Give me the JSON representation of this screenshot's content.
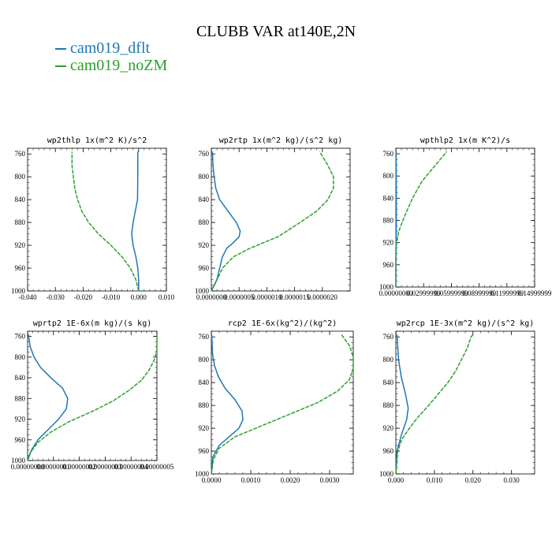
{
  "figure": {
    "title": "CLUBB VAR at140E,2N",
    "legend": [
      {
        "label": "cam019_dflt",
        "color": "#1f77b4"
      },
      {
        "label": "cam019_noZM",
        "color": "#2ca02c"
      }
    ]
  },
  "chart_data": [
    {
      "type": "line",
      "title": "wp2thlp  1x(m^2 K)/s^2",
      "xlim": [
        -0.04,
        0.01
      ],
      "ylim": [
        1000,
        750
      ],
      "xticks": [
        "-0.040",
        "-0.030",
        "-0.020",
        "-0.010",
        "0.000",
        "0.010"
      ],
      "yticks": [
        "760",
        "800",
        "840",
        "880",
        "920",
        "960",
        "1000"
      ],
      "series": [
        {
          "name": "cam019_dflt",
          "points": [
            [
              0.0,
              1000
            ],
            [
              0.0,
              980
            ],
            [
              -0.0003,
              960
            ],
            [
              -0.001,
              940
            ],
            [
              -0.002,
              920
            ],
            [
              -0.0025,
              900
            ],
            [
              -0.002,
              880
            ],
            [
              -0.0012,
              860
            ],
            [
              -0.0004,
              840
            ],
            [
              -0.0003,
              800
            ],
            [
              -0.0003,
              756
            ]
          ]
        },
        {
          "name": "cam019_noZM",
          "points": [
            [
              0.0,
              1000
            ],
            [
              -0.001,
              980
            ],
            [
              -0.003,
              960
            ],
            [
              -0.006,
              940
            ],
            [
              -0.01,
              920
            ],
            [
              -0.0145,
              900
            ],
            [
              -0.018,
              880
            ],
            [
              -0.0205,
              860
            ],
            [
              -0.022,
              840
            ],
            [
              -0.023,
              820
            ],
            [
              -0.0235,
              800
            ],
            [
              -0.024,
              780
            ],
            [
              -0.024,
              756
            ]
          ]
        }
      ]
    },
    {
      "type": "line",
      "title": "wp2rtp  1x(m^2 kg)/(s^2 kg)",
      "xlim": [
        0.0,
        2.5e-06
      ],
      "ylim": [
        1000,
        750
      ],
      "xticks": [
        "0.0000000",
        "0.0000005",
        "0.0000010",
        "0.0000015",
        "0.0000020"
      ],
      "yticks": [
        "760",
        "800",
        "840",
        "880",
        "920",
        "960",
        "1000"
      ],
      "series": [
        {
          "name": "cam019_dflt",
          "points": [
            [
              0.0,
              1000
            ],
            [
              5e-08,
              990
            ],
            [
              1e-07,
              980
            ],
            [
              1.5e-07,
              960
            ],
            [
              2e-07,
              940
            ],
            [
              2.8e-07,
              925
            ],
            [
              4e-07,
              915
            ],
            [
              5e-07,
              905
            ],
            [
              5.2e-07,
              895
            ],
            [
              4.5e-07,
              880
            ],
            [
              3e-07,
              860
            ],
            [
              1.5e-07,
              840
            ],
            [
              8e-08,
              820
            ],
            [
              5e-08,
              800
            ],
            [
              3e-08,
              780
            ],
            [
              2e-08,
              756
            ]
          ]
        },
        {
          "name": "cam019_noZM",
          "points": [
            [
              0.0,
              1000
            ],
            [
              8e-08,
              985
            ],
            [
              2e-07,
              960
            ],
            [
              4e-07,
              940
            ],
            [
              7e-07,
              925
            ],
            [
              1.2e-06,
              905
            ],
            [
              1.6e-06,
              880
            ],
            [
              1.9e-06,
              860
            ],
            [
              2.1e-06,
              840
            ],
            [
              2.2e-06,
              820
            ],
            [
              2.2e-06,
              800
            ],
            [
              2.1e-06,
              780
            ],
            [
              1.95e-06,
              756
            ]
          ]
        }
      ]
    },
    {
      "type": "line",
      "title": "wpthlp2  1x(m K^2)/s",
      "xlim": [
        0.0,
        0.15
      ],
      "ylim": [
        1000,
        750
      ],
      "xticks": [
        "0.00000000",
        "0.02999999",
        "0.05999999",
        "0.08999999",
        "0.11999999",
        "0.14999999"
      ],
      "yticks": [
        "760",
        "800",
        "840",
        "880",
        "920",
        "960",
        "1000"
      ],
      "series": [
        {
          "name": "cam019_dflt",
          "points": [
            [
              0.0,
              1000
            ],
            [
              0.0,
              960
            ],
            [
              0.0003,
              920
            ],
            [
              0.0005,
              880
            ],
            [
              0.0005,
              840
            ],
            [
              0.0004,
              800
            ],
            [
              0.0003,
              756
            ]
          ]
        },
        {
          "name": "cam019_noZM",
          "points": [
            [
              0.0,
              1000
            ],
            [
              0.0,
              960
            ],
            [
              0.0,
              930
            ],
            [
              0.003,
              900
            ],
            [
              0.01,
              870
            ],
            [
              0.018,
              840
            ],
            [
              0.028,
              810
            ],
            [
              0.038,
              790
            ],
            [
              0.048,
              770
            ],
            [
              0.055,
              756
            ]
          ]
        }
      ]
    },
    {
      "type": "line",
      "title": "wprtp2  1E-6x(m kg)/(s kg)",
      "xlim": [
        0.0,
        5e-08
      ],
      "ylim": [
        1000,
        750
      ],
      "xticks": [
        "0.00000000",
        "0.00000001",
        "0.00000002",
        "0.00000003",
        "0.00000004",
        "0.00000005"
      ],
      "yticks": [
        "760",
        "800",
        "840",
        "880",
        "920",
        "960",
        "1000"
      ],
      "series": [
        {
          "name": "cam019_dflt",
          "points": [
            [
              0.0,
              1000
            ],
            [
              1.5e-09,
              980
            ],
            [
              4e-09,
              960
            ],
            [
              8e-09,
              940
            ],
            [
              1.2e-08,
              920
            ],
            [
              1.5e-08,
              900
            ],
            [
              1.55e-08,
              880
            ],
            [
              1.35e-08,
              860
            ],
            [
              9e-09,
              840
            ],
            [
              5e-09,
              820
            ],
            [
              2.5e-09,
              800
            ],
            [
              1e-09,
              780
            ],
            [
              3e-10,
              756
            ]
          ]
        },
        {
          "name": "cam019_noZM",
          "points": [
            [
              0.0,
              1000
            ],
            [
              1e-09,
              985
            ],
            [
              4e-09,
              965
            ],
            [
              9e-09,
              945
            ],
            [
              1.6e-08,
              925
            ],
            [
              2.5e-08,
              905
            ],
            [
              3.3e-08,
              885
            ],
            [
              3.9e-08,
              865
            ],
            [
              4.4e-08,
              845
            ],
            [
              4.7e-08,
              825
            ],
            [
              4.9e-08,
              805
            ],
            [
              5e-08,
              785
            ],
            [
              5e-08,
              756
            ]
          ]
        }
      ]
    },
    {
      "type": "line",
      "title": "rcp2  1E-6x(kg^2)/(kg^2)",
      "xlim": [
        0.0,
        0.0036
      ],
      "ylim": [
        1000,
        750
      ],
      "xticks": [
        "0.0000",
        "0.0010",
        "0.0020",
        "0.0030"
      ],
      "yticks": [
        "760",
        "800",
        "840",
        "880",
        "920",
        "960",
        "1000"
      ],
      "series": [
        {
          "name": "cam019_dflt",
          "points": [
            [
              0.0,
              1000
            ],
            [
              4e-05,
              970
            ],
            [
              0.0002,
              950
            ],
            [
              0.00045,
              935
            ],
            [
              0.0007,
              920
            ],
            [
              0.0008,
              905
            ],
            [
              0.00078,
              890
            ],
            [
              0.0006,
              870
            ],
            [
              0.00035,
              850
            ],
            [
              0.00018,
              830
            ],
            [
              8e-05,
              810
            ],
            [
              3e-05,
              790
            ],
            [
              1e-05,
              756
            ]
          ]
        },
        {
          "name": "cam019_noZM",
          "points": [
            [
              0.0,
              1000
            ],
            [
              5e-05,
              975
            ],
            [
              0.0002,
              955
            ],
            [
              0.0006,
              935
            ],
            [
              0.0013,
              915
            ],
            [
              0.002,
              895
            ],
            [
              0.0027,
              875
            ],
            [
              0.0032,
              855
            ],
            [
              0.0035,
              835
            ],
            [
              0.0036,
              815
            ],
            [
              0.0036,
              795
            ],
            [
              0.0035,
              775
            ],
            [
              0.0033,
              756
            ]
          ]
        }
      ]
    },
    {
      "type": "line",
      "title": "wp2rcp  1E-3x(m^2 kg)/(s^2 kg)",
      "xlim": [
        0.0,
        0.036
      ],
      "ylim": [
        1000,
        750
      ],
      "xticks": [
        "0.000",
        "0.010",
        "0.020",
        "0.030"
      ],
      "yticks": [
        "760",
        "800",
        "840",
        "880",
        "920",
        "960",
        "1000"
      ],
      "series": [
        {
          "name": "cam019_dflt",
          "points": [
            [
              0.0,
              1000
            ],
            [
              0.0003,
              960
            ],
            [
              0.0015,
              930
            ],
            [
              0.0028,
              905
            ],
            [
              0.0032,
              885
            ],
            [
              0.0025,
              860
            ],
            [
              0.0014,
              830
            ],
            [
              0.0007,
              800
            ],
            [
              0.0003,
              756
            ]
          ]
        },
        {
          "name": "cam019_noZM",
          "points": [
            [
              0.0,
              1000
            ],
            [
              0.0005,
              960
            ],
            [
              0.0015,
              940
            ],
            [
              0.0035,
              920
            ],
            [
              0.0058,
              900
            ],
            [
              0.0085,
              880
            ],
            [
              0.011,
              860
            ],
            [
              0.0135,
              840
            ],
            [
              0.0155,
              820
            ],
            [
              0.017,
              800
            ],
            [
              0.0185,
              780
            ],
            [
              0.0195,
              760
            ],
            [
              0.02,
              756
            ]
          ]
        }
      ]
    }
  ]
}
